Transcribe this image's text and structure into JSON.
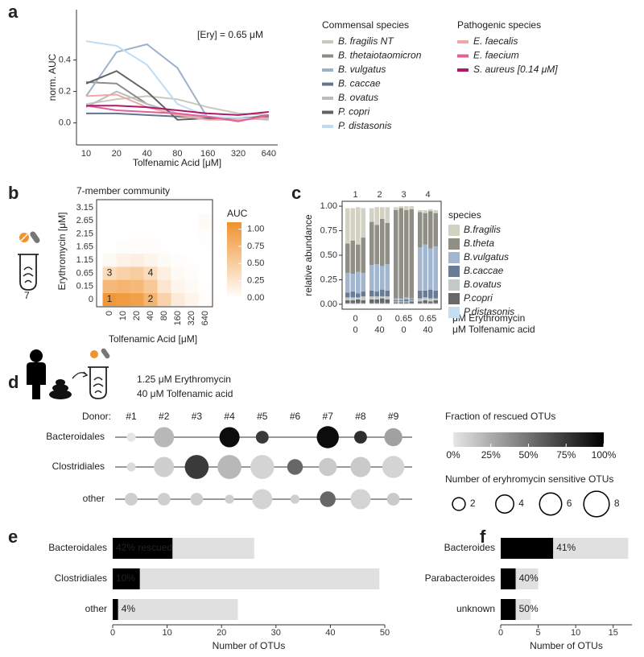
{
  "chart_data": [
    {
      "panel": "a",
      "type": "line",
      "annotation": "[Ery] = 0.65 μM",
      "xlabel": "Tolfenamic Acid [μM]",
      "ylabel": "norm. AUC",
      "categories": [
        "10",
        "20",
        "40",
        "80",
        "160",
        "320",
        "640"
      ],
      "ylim": [
        -0.14,
        0.72
      ],
      "yticks": [
        {
          "value": 0,
          "label": "0.0"
        },
        0.2,
        0.4
      ],
      "legend_titles": [
        "Commensal species",
        "Pathogenic species"
      ],
      "series": [
        {
          "name": "B. fragilis NT",
          "color": "#c9c9bb",
          "values": [
            0.12,
            0.15,
            0.17,
            0.15,
            0.1,
            0.06,
            0.05
          ]
        },
        {
          "name": "B. thetaiotaomicron",
          "color": "#8c8c82",
          "values": [
            0.26,
            0.25,
            0.12,
            0.06,
            0.03,
            0.02,
            0.03
          ]
        },
        {
          "name": "B. vulgatus",
          "color": "#9db1ca",
          "values": [
            0.17,
            0.45,
            0.5,
            0.35,
            0.03,
            0.03,
            0.04
          ]
        },
        {
          "name": "B. caccae",
          "color": "#61758f",
          "values": [
            0.06,
            0.06,
            0.05,
            0.04,
            0.03,
            0.03,
            0.04
          ]
        },
        {
          "name": "B. ovatus",
          "color": "#b9bdc0",
          "values": [
            0.1,
            0.2,
            0.12,
            0.06,
            0.03,
            0.03,
            0.02
          ]
        },
        {
          "name": "P. copri",
          "color": "#626262",
          "values": [
            0.25,
            0.33,
            0.2,
            0.02,
            0.03,
            0.02,
            0.05
          ]
        },
        {
          "name": "P. distasonis",
          "color": "#bfdcf2",
          "values": [
            0.52,
            0.49,
            0.37,
            0.12,
            0.04,
            0.03,
            0.03
          ]
        },
        {
          "name": "E. faecalis",
          "color": "#f3a6a6",
          "values": [
            0.17,
            0.18,
            0.1,
            0.05,
            0.02,
            0.02,
            0.03
          ]
        },
        {
          "name": "E. faecium",
          "color": "#e2609a",
          "values": [
            0.11,
            0.08,
            0.07,
            0.06,
            0.04,
            0.01,
            0.05
          ]
        },
        {
          "name": "S. aureus [0.14 μM]",
          "color": "#b0186e",
          "values": [
            0.11,
            0.11,
            0.1,
            0.08,
            0.06,
            0.05,
            0.07
          ]
        }
      ]
    },
    {
      "panel": "b",
      "type": "heatmap",
      "subtitle": "7-member community",
      "icon_label": 7,
      "xlabel": "Tolfenamic Acid [μM]",
      "ylabel": "Erythromycin [μM]",
      "categories": [
        "0",
        "10",
        "20",
        "40",
        "80",
        "160",
        "320",
        "640"
      ],
      "y_categories": [
        "0",
        "0.15",
        "0.65",
        "1.15",
        "1.65",
        "2.15",
        "2.65",
        "3.15"
      ],
      "values": [
        [
          1.05,
          1.0,
          0.95,
          0.75,
          0.45,
          0.2,
          0.1,
          0.03
        ],
        [
          0.7,
          0.75,
          0.7,
          0.55,
          0.25,
          0.1,
          0.04,
          0.01
        ],
        [
          0.35,
          0.45,
          0.5,
          0.35,
          0.15,
          0.05,
          0.02,
          0
        ],
        [
          0.05,
          0.12,
          0.15,
          0.1,
          0.05,
          0.02,
          0.01,
          0
        ],
        [
          0,
          0.02,
          0.03,
          0.02,
          0.01,
          0,
          0,
          0.01
        ],
        [
          0,
          0,
          0.01,
          0.01,
          0,
          0,
          0,
          0.02
        ],
        [
          0,
          0,
          0,
          0,
          0,
          0,
          0,
          0.04
        ],
        [
          0,
          0,
          0,
          0,
          0,
          0,
          0,
          0
        ]
      ],
      "cell_labels": [
        "1",
        "2",
        "3",
        "4"
      ],
      "colorbar_title": "AUC",
      "colors": [
        "#ffffff",
        "#f0922e"
      ],
      "zlim": [
        0,
        1.1
      ],
      "zticks": [
        {
          "value": 0,
          "label": "0.00"
        },
        {
          "value": 0.25,
          "label": "0.25"
        },
        {
          "value": 0.5,
          "label": "0.50"
        },
        {
          "value": 0.75,
          "label": "0.75"
        },
        {
          "value": 1,
          "label": "1.00"
        }
      ]
    },
    {
      "panel": "c",
      "type": "stacked_bar",
      "ylabel": "relative abundance",
      "legend_title": "species",
      "categories": [
        null,
        null,
        null,
        null,
        null,
        null,
        null,
        null,
        null,
        null,
        null,
        null,
        null,
        null,
        null,
        null
      ],
      "groups": [
        "1",
        "2",
        "3",
        "4"
      ],
      "erythromycin": [
        0,
        0,
        0.65,
        0.65
      ],
      "tolfenamic": [
        0,
        40,
        0,
        40
      ],
      "erythromycin_label": "μM Erythromycin",
      "tolfenamic_label": "μM Tolfenamic acid",
      "ylim": [
        -0.05,
        1.05
      ],
      "yticks": [
        {
          "value": 0,
          "label": "0.00"
        },
        {
          "value": 0.25,
          "label": "0.25"
        },
        {
          "value": 0.5,
          "label": "0.50"
        },
        {
          "value": 0.75,
          "label": "0.75"
        },
        {
          "value": 1,
          "label": "1.00"
        }
      ],
      "series": [
        {
          "name": "B.fragilis",
          "color": "#d2d2c3",
          "values": [
            0.36,
            0.33,
            0.38,
            0.3,
            0.14,
            0.18,
            0.12,
            0.16,
            0.03,
            0.02,
            0.04,
            0.03,
            0.02,
            0.03,
            0.02,
            0.03
          ]
        },
        {
          "name": "B.theta",
          "color": "#8f8f85",
          "values": [
            0.3,
            0.34,
            0.28,
            0.36,
            0.44,
            0.4,
            0.48,
            0.42,
            0.9,
            0.92,
            0.89,
            0.91,
            0.36,
            0.32,
            0.38,
            0.34
          ]
        },
        {
          "name": "B.vulgatus",
          "color": "#a3b6cf",
          "values": [
            0.2,
            0.18,
            0.22,
            0.19,
            0.26,
            0.28,
            0.24,
            0.27,
            0.02,
            0.02,
            0.02,
            0.01,
            0.44,
            0.47,
            0.42,
            0.45
          ]
        },
        {
          "name": "B.caccae",
          "color": "#687c96",
          "values": [
            0.05,
            0.06,
            0.04,
            0.05,
            0.06,
            0.05,
            0.07,
            0.06,
            0.01,
            0.01,
            0.02,
            0.01,
            0.08,
            0.07,
            0.09,
            0.08
          ]
        },
        {
          "name": "B.ovatus",
          "color": "#c3c8c8",
          "values": [
            0.03,
            0.03,
            0.02,
            0.04,
            0.03,
            0.03,
            0.02,
            0.03,
            0.01,
            0.01,
            0.01,
            0.01,
            0.03,
            0.03,
            0.03,
            0.02
          ]
        },
        {
          "name": "P.copri",
          "color": "#686868",
          "values": [
            0.03,
            0.03,
            0.04,
            0.03,
            0.04,
            0.04,
            0.05,
            0.04,
            0.01,
            0.01,
            0.01,
            0.02,
            0.02,
            0.03,
            0.02,
            0.03
          ]
        },
        {
          "name": "P.distasonis",
          "color": "#c4def4",
          "values": [
            0.01,
            0.01,
            0.01,
            0.01,
            0.01,
            0.01,
            0.01,
            0.01,
            0.01,
            0.01,
            0.01,
            0.01,
            0.01,
            0.01,
            0.01,
            0.01
          ]
        }
      ]
    },
    {
      "panel": "d",
      "type": "bubble",
      "conditions": [
        "1.25 μM Erythromycin",
        "40 μM Tolfenamic acid"
      ],
      "donor_label": "Donor:",
      "categories": [
        "#1",
        "#2",
        "#3",
        "#4",
        "#5",
        "#6",
        "#7",
        "#8",
        "#9"
      ],
      "series": [
        {
          "name": "Bacteroidales",
          "values": [
            0,
            20,
            null,
            95,
            75,
            null,
            95,
            80,
            30
          ],
          "sizes": [
            1,
            5,
            null,
            5,
            2,
            null,
            6,
            2,
            4
          ]
        },
        {
          "name": "Clostridiales",
          "values": [
            5,
            10,
            75,
            20,
            8,
            55,
            12,
            12,
            8
          ],
          "sizes": [
            1,
            5,
            7,
            7,
            7,
            3,
            4,
            5,
            6
          ]
        },
        {
          "name": "other",
          "values": [
            10,
            10,
            10,
            10,
            8,
            10,
            55,
            8,
            12
          ],
          "sizes": [
            2,
            2,
            2,
            1,
            5,
            1,
            3,
            5,
            2
          ]
        }
      ],
      "colorbar_title": "Fraction of rescued OTUs",
      "colors": [
        "#e6e6e6",
        "#000000"
      ],
      "zlim": [
        0,
        100
      ],
      "zticks": [
        {
          "value": 0,
          "label": "0%"
        },
        {
          "value": 25,
          "label": "25%"
        },
        {
          "value": 50,
          "label": "50%"
        },
        {
          "value": 75,
          "label": "75%"
        },
        {
          "value": 100,
          "label": "100%"
        }
      ],
      "size_title": "Number of eryhromycin sensitive OTUs",
      "size_ticks": [
        2,
        4,
        6,
        8
      ]
    },
    {
      "panel": "e",
      "type": "hbar_stacked",
      "xlabel": "Number of OTUs",
      "categories": [
        "Bacteroidales",
        "Clostridiales",
        "other"
      ],
      "series": [
        {
          "color": "#000000",
          "values": [
            11,
            5,
            1
          ]
        },
        {
          "color": "#e0e0e0",
          "values": [
            15,
            44,
            22
          ]
        }
      ],
      "annotations": [
        "42% rescued",
        "10%",
        "4%"
      ],
      "xlim": [
        0,
        50
      ],
      "xticks": [
        0,
        10,
        20,
        30,
        40,
        50
      ]
    },
    {
      "panel": "f",
      "type": "hbar_stacked",
      "xlabel": "Number of OTUs",
      "categories": [
        "Bacteroides",
        "Parabacteroides",
        "unknown"
      ],
      "series": [
        {
          "color": "#000000",
          "values": [
            7,
            2,
            2
          ]
        },
        {
          "color": "#e0e0e0",
          "values": [
            10,
            3,
            2
          ]
        }
      ],
      "annotations": [
        "41%",
        "40%",
        "50%"
      ],
      "xlim": [
        0,
        17.5
      ],
      "xticks": [
        0,
        5,
        10,
        15
      ]
    }
  ]
}
